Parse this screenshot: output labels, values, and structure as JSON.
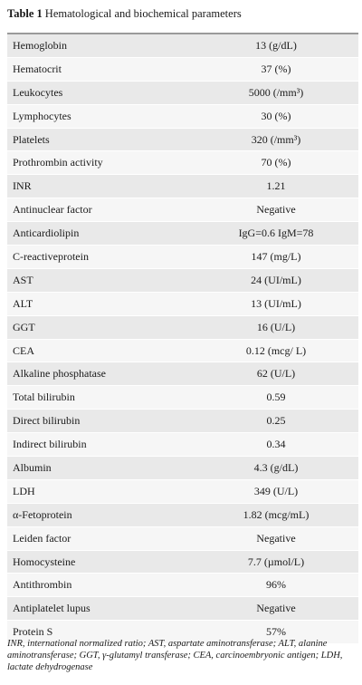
{
  "title": {
    "label": "Table 1",
    "text": "Hematological and biochemical parameters"
  },
  "table": {
    "rows": [
      [
        "Hemoglobin",
        "13 (g/dL)"
      ],
      [
        "Hematocrit",
        "37 (%)"
      ],
      [
        "Leukocytes",
        "5000 (/mm³)"
      ],
      [
        "Lymphocytes",
        "30 (%)"
      ],
      [
        "Platelets",
        "320 (/mm³)"
      ],
      [
        "Prothrombin activity",
        "70 (%)"
      ],
      [
        "INR",
        "1.21"
      ],
      [
        "Antinuclear factor",
        "Negative"
      ],
      [
        "Anticardiolipin",
        "IgG=0.6 IgM=78"
      ],
      [
        "C-reactiveprotein",
        "147 (mg/L)"
      ],
      [
        "AST",
        "24 (UI/mL)"
      ],
      [
        "ALT",
        "13 (UI/mL)"
      ],
      [
        "GGT",
        "16 (U/L)"
      ],
      [
        "CEA",
        "0.12 (mcg/ L)"
      ],
      [
        "Alkaline phosphatase",
        "62 (U/L)"
      ],
      [
        "Total bilirubin",
        "0.59"
      ],
      [
        "Direct bilirubin",
        "0.25"
      ],
      [
        "Indirect bilirubin",
        "0.34"
      ],
      [
        "Albumin",
        "4.3 (g/dL)"
      ],
      [
        "LDH",
        "349 (U/L)"
      ],
      [
        "α-Fetoprotein",
        "1.82 (mcg/mL)"
      ],
      [
        "Leiden factor",
        "Negative"
      ],
      [
        "Homocysteine",
        "7.7 (µmol/L)"
      ],
      [
        "Antithrombin",
        "96%"
      ],
      [
        "Antiplatelet lupus",
        "Negative"
      ],
      [
        "Protein S",
        "57%"
      ]
    ]
  },
  "footnote": "INR, international normalized ratio; AST, aspartate aminotransferase; ALT, alanine aminotransferase; GGT, γ-glutamyl transferase; CEA, carcinoembryonic antigen; LDH, lactate dehydrogenase"
}
